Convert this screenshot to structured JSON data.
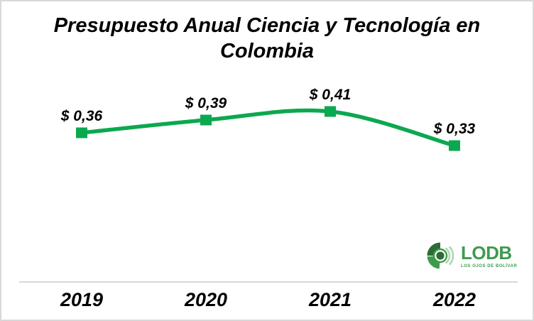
{
  "page": {
    "background": "#ffffff",
    "border_color": "#d8d8d8",
    "text_color": "#000000"
  },
  "chart_data": {
    "type": "line",
    "title": "Presupuesto Anual Ciencia y Tecnología en Colombia",
    "title_lines": [
      "Presupuesto Anual Ciencia y Tecnología en",
      "Colombia"
    ],
    "categories": [
      "2019",
      "2020",
      "2021",
      "2022"
    ],
    "series": [
      {
        "values": [
          0.36,
          0.39,
          0.41,
          0.33
        ],
        "labels": [
          "$ 0,36",
          "$ 0,39",
          "$ 0,41",
          "$ 0,33"
        ],
        "color": "#0ca84f",
        "marker": "square",
        "line_width": 5.5,
        "smooth": true
      }
    ],
    "data_labels": true,
    "grid": false,
    "legend": "none",
    "y_axis": "hidden",
    "x_axis_line_color": "#d8d8d8",
    "xlabel": "",
    "ylabel": ""
  },
  "branding": {
    "logo_text": "LODB",
    "logo_tagline": "LOS OJOS DE BOLÍVAR",
    "colors": {
      "dark_green": "#2e6b35",
      "mid_green": "#3f9b4c",
      "light_green": "#abd7b0",
      "text_green": "#3e9b4f"
    }
  }
}
